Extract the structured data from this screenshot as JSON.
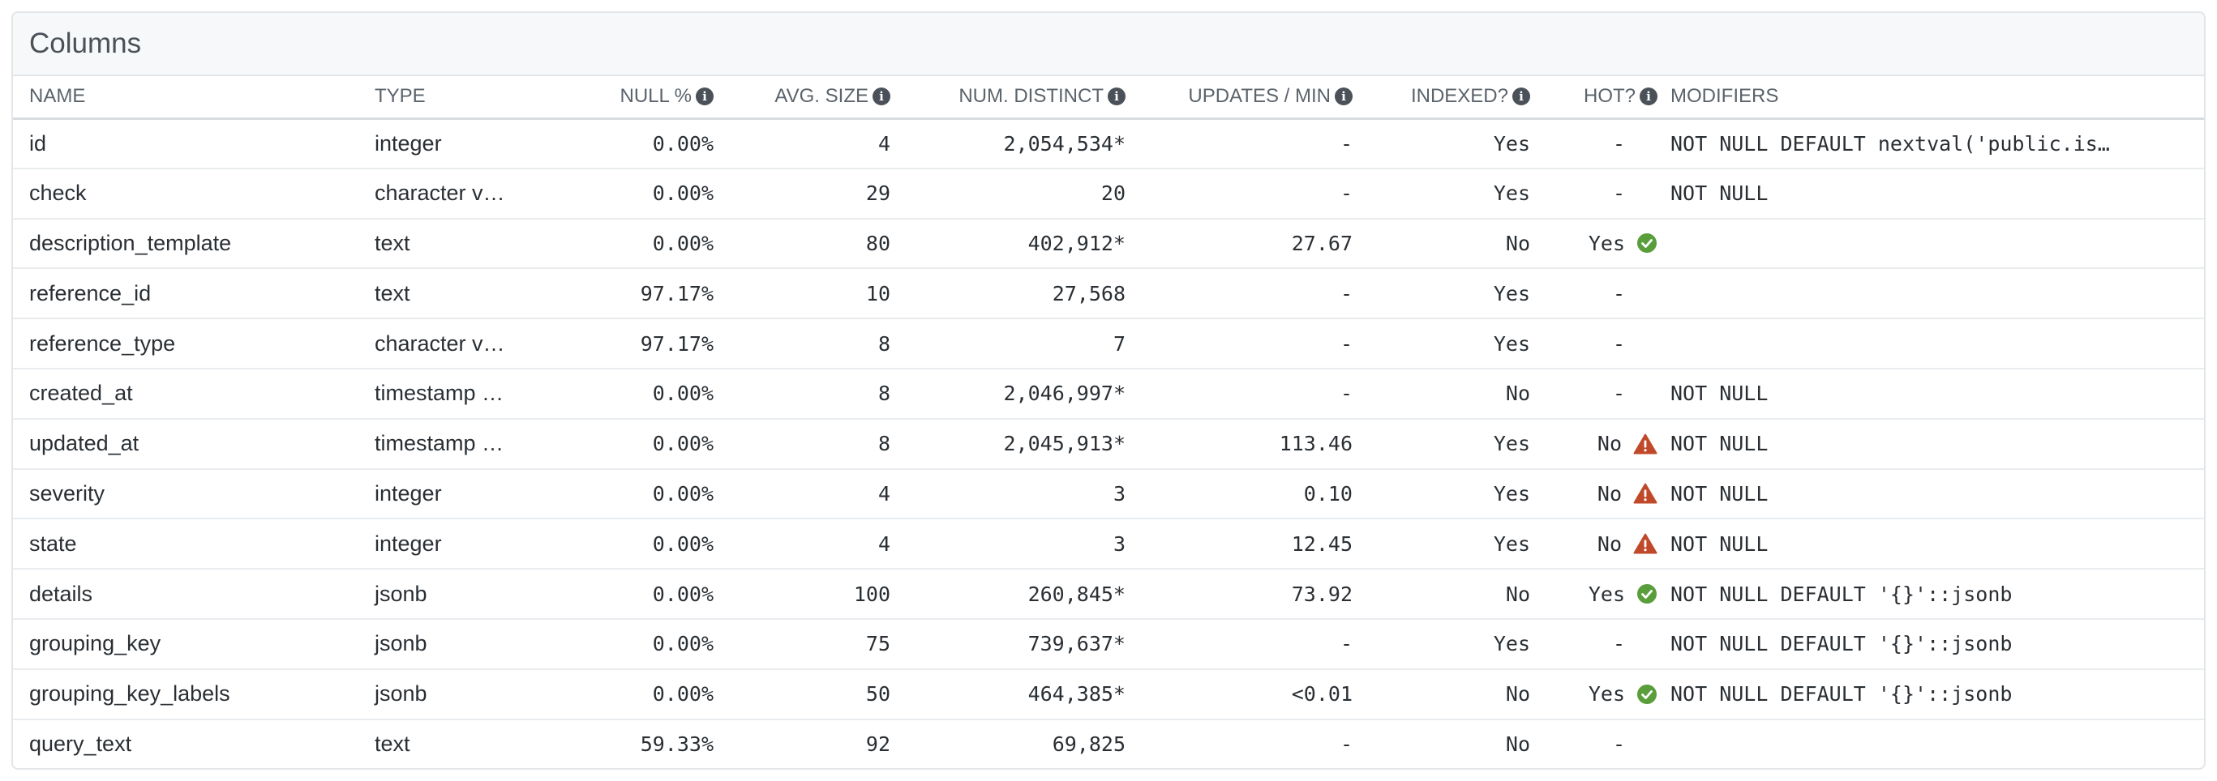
{
  "panel": {
    "title": "Columns"
  },
  "headers": {
    "name": "NAME",
    "type": "TYPE",
    "null_pct": "NULL %",
    "avg_size": "AVG. SIZE",
    "num_distinct": "NUM. DISTINCT",
    "updates_min": "UPDATES / MIN",
    "indexed": "INDEXED?",
    "hot": "HOT?",
    "modifiers": "MODIFIERS"
  },
  "icons": {
    "info": "info-circle-icon",
    "ok": "check-circle-icon",
    "warn": "warning-triangle-icon"
  },
  "colors": {
    "ok": "#5a9e3c",
    "warn": "#c0492a",
    "info": "#4a5158"
  },
  "rows": [
    {
      "name": "id",
      "type": "integer",
      "null_pct": "0.00%",
      "avg_size": "4",
      "num_distinct": "2,054,534*",
      "updates_min": "-",
      "indexed": "Yes",
      "hot": "-",
      "hot_status": "none",
      "modifiers": "NOT NULL DEFAULT nextval('public.is…"
    },
    {
      "name": "check",
      "type": "character v…",
      "null_pct": "0.00%",
      "avg_size": "29",
      "num_distinct": "20",
      "updates_min": "-",
      "indexed": "Yes",
      "hot": "-",
      "hot_status": "none",
      "modifiers": "NOT NULL"
    },
    {
      "name": "description_template",
      "type": "text",
      "null_pct": "0.00%",
      "avg_size": "80",
      "num_distinct": "402,912*",
      "updates_min": "27.67",
      "indexed": "No",
      "hot": "Yes",
      "hot_status": "ok",
      "modifiers": ""
    },
    {
      "name": "reference_id",
      "type": "text",
      "null_pct": "97.17%",
      "avg_size": "10",
      "num_distinct": "27,568",
      "updates_min": "-",
      "indexed": "Yes",
      "hot": "-",
      "hot_status": "none",
      "modifiers": ""
    },
    {
      "name": "reference_type",
      "type": "character v…",
      "null_pct": "97.17%",
      "avg_size": "8",
      "num_distinct": "7",
      "updates_min": "-",
      "indexed": "Yes",
      "hot": "-",
      "hot_status": "none",
      "modifiers": ""
    },
    {
      "name": "created_at",
      "type": "timestamp …",
      "null_pct": "0.00%",
      "avg_size": "8",
      "num_distinct": "2,046,997*",
      "updates_min": "-",
      "indexed": "No",
      "hot": "-",
      "hot_status": "none",
      "modifiers": "NOT NULL"
    },
    {
      "name": "updated_at",
      "type": "timestamp …",
      "null_pct": "0.00%",
      "avg_size": "8",
      "num_distinct": "2,045,913*",
      "updates_min": "113.46",
      "indexed": "Yes",
      "hot": "No",
      "hot_status": "warn",
      "modifiers": "NOT NULL"
    },
    {
      "name": "severity",
      "type": "integer",
      "null_pct": "0.00%",
      "avg_size": "4",
      "num_distinct": "3",
      "updates_min": "0.10",
      "indexed": "Yes",
      "hot": "No",
      "hot_status": "warn",
      "modifiers": "NOT NULL"
    },
    {
      "name": "state",
      "type": "integer",
      "null_pct": "0.00%",
      "avg_size": "4",
      "num_distinct": "3",
      "updates_min": "12.45",
      "indexed": "Yes",
      "hot": "No",
      "hot_status": "warn",
      "modifiers": "NOT NULL"
    },
    {
      "name": "details",
      "type": "jsonb",
      "null_pct": "0.00%",
      "avg_size": "100",
      "num_distinct": "260,845*",
      "updates_min": "73.92",
      "indexed": "No",
      "hot": "Yes",
      "hot_status": "ok",
      "modifiers": "NOT NULL DEFAULT '{}'::jsonb"
    },
    {
      "name": "grouping_key",
      "type": "jsonb",
      "null_pct": "0.00%",
      "avg_size": "75",
      "num_distinct": "739,637*",
      "updates_min": "-",
      "indexed": "Yes",
      "hot": "-",
      "hot_status": "none",
      "modifiers": "NOT NULL DEFAULT '{}'::jsonb"
    },
    {
      "name": "grouping_key_labels",
      "type": "jsonb",
      "null_pct": "0.00%",
      "avg_size": "50",
      "num_distinct": "464,385*",
      "updates_min": "<0.01",
      "indexed": "No",
      "hot": "Yes",
      "hot_status": "ok",
      "modifiers": "NOT NULL DEFAULT '{}'::jsonb"
    },
    {
      "name": "query_text",
      "type": "text",
      "null_pct": "59.33%",
      "avg_size": "92",
      "num_distinct": "69,825",
      "updates_min": "-",
      "indexed": "No",
      "hot": "-",
      "hot_status": "none",
      "modifiers": ""
    }
  ]
}
